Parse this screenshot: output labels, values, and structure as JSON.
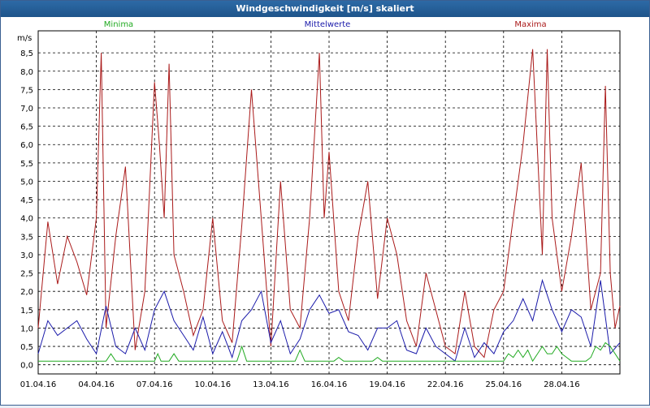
{
  "window": {
    "title": "Windgeschwindigkeit [m/s] skaliert"
  },
  "chart_data": {
    "type": "line",
    "title": "Windgeschwindigkeit [m/s] skaliert",
    "ylabel": "m/s",
    "ylim": [
      -0.25,
      9.1
    ],
    "xlim": [
      "2016-04-01",
      "2016-05-01"
    ],
    "grid": true,
    "y_ticks": [
      "0,0",
      "0,5",
      "1,0",
      "1,5",
      "2,0",
      "2,5",
      "3,0",
      "3,5",
      "4,0",
      "4,5",
      "5,0",
      "5,5",
      "6,0",
      "6,5",
      "7,0",
      "7,5",
      "8,0",
      "8,5"
    ],
    "y_tick_values": [
      0,
      0.5,
      1,
      1.5,
      2,
      2.5,
      3,
      3.5,
      4,
      4.5,
      5,
      5.5,
      6,
      6.5,
      7,
      7.5,
      8,
      8.5
    ],
    "x_ticks": [
      "01.04.16",
      "04.04.16",
      "07.04.16",
      "10.04.16",
      "13.04.16",
      "16.04.16",
      "19.04.16",
      "22.04.16",
      "25.04.16",
      "28.04.16"
    ],
    "x_tick_dates": [
      "2016-04-01",
      "2016-04-04",
      "2016-04-07",
      "2016-04-10",
      "2016-04-13",
      "2016-04-16",
      "2016-04-19",
      "2016-04-22",
      "2016-04-25",
      "2016-04-28"
    ],
    "legend": [
      "Minima",
      "Mittelwerte",
      "Maxima"
    ],
    "colors": {
      "minima": "#22aa22",
      "mittelwerte": "#1a1aaa",
      "maxima": "#aa1a1a"
    },
    "series": [
      {
        "name": "Maxima",
        "color": "#aa1a1a",
        "x": [
          "2016-04-01 00:00",
          "2016-04-01 12:00",
          "2016-04-02 00:00",
          "2016-04-02 12:00",
          "2016-04-03 00:00",
          "2016-04-03 12:00",
          "2016-04-04 00:00",
          "2016-04-04 06:00",
          "2016-04-04 12:00",
          "2016-04-05 00:00",
          "2016-04-05 12:00",
          "2016-04-06 00:00",
          "2016-04-06 12:00",
          "2016-04-07 00:00",
          "2016-04-07 06:00",
          "2016-04-07 12:00",
          "2016-04-07 18:00",
          "2016-04-08 00:00",
          "2016-04-08 12:00",
          "2016-04-09 00:00",
          "2016-04-09 12:00",
          "2016-04-10 00:00",
          "2016-04-10 12:00",
          "2016-04-11 00:00",
          "2016-04-11 12:00",
          "2016-04-12 00:00",
          "2016-04-12 12:00",
          "2016-04-13 00:00",
          "2016-04-13 12:00",
          "2016-04-14 00:00",
          "2016-04-14 12:00",
          "2016-04-15 00:00",
          "2016-04-15 12:00",
          "2016-04-15 18:00",
          "2016-04-16 00:00",
          "2016-04-16 12:00",
          "2016-04-17 00:00",
          "2016-04-17 12:00",
          "2016-04-18 00:00",
          "2016-04-18 12:00",
          "2016-04-19 00:00",
          "2016-04-19 12:00",
          "2016-04-20 00:00",
          "2016-04-20 12:00",
          "2016-04-21 00:00",
          "2016-04-21 12:00",
          "2016-04-22 00:00",
          "2016-04-22 12:00",
          "2016-04-23 00:00",
          "2016-04-23 12:00",
          "2016-04-24 00:00",
          "2016-04-24 12:00",
          "2016-04-25 00:00",
          "2016-04-25 12:00",
          "2016-04-26 00:00",
          "2016-04-26 12:00",
          "2016-04-27 00:00",
          "2016-04-27 06:00",
          "2016-04-27 12:00",
          "2016-04-28 00:00",
          "2016-04-28 12:00",
          "2016-04-29 00:00",
          "2016-04-29 12:00",
          "2016-04-30 00:00",
          "2016-04-30 06:00",
          "2016-04-30 12:00",
          "2016-04-30 18:00",
          "2016-05-01 00:00"
        ],
        "y": [
          1.0,
          3.9,
          2.2,
          3.5,
          2.8,
          1.9,
          4.0,
          8.5,
          1.0,
          3.5,
          5.4,
          0.4,
          2.0,
          7.7,
          6.0,
          4.0,
          8.2,
          3.0,
          2.0,
          0.8,
          1.5,
          4.0,
          1.2,
          0.6,
          3.8,
          7.5,
          4.0,
          0.5,
          5.0,
          1.5,
          1.0,
          4.0,
          8.5,
          4.0,
          5.8,
          2.0,
          1.2,
          3.5,
          5.0,
          1.8,
          4.0,
          3.0,
          1.2,
          0.5,
          2.5,
          1.5,
          0.5,
          0.3,
          2.0,
          0.5,
          0.2,
          1.5,
          2.0,
          4.0,
          6.0,
          8.6,
          3.0,
          8.6,
          4.0,
          2.0,
          3.5,
          5.5,
          1.5,
          2.5,
          7.6,
          2.5,
          1.0,
          1.6
        ]
      },
      {
        "name": "Mittelwerte",
        "color": "#1a1aaa",
        "x": [
          "2016-04-01 00:00",
          "2016-04-01 12:00",
          "2016-04-02 00:00",
          "2016-04-02 12:00",
          "2016-04-03 00:00",
          "2016-04-03 12:00",
          "2016-04-04 00:00",
          "2016-04-04 12:00",
          "2016-04-05 00:00",
          "2016-04-05 12:00",
          "2016-04-06 00:00",
          "2016-04-06 12:00",
          "2016-04-07 00:00",
          "2016-04-07 12:00",
          "2016-04-08 00:00",
          "2016-04-08 12:00",
          "2016-04-09 00:00",
          "2016-04-09 12:00",
          "2016-04-10 00:00",
          "2016-04-10 12:00",
          "2016-04-11 00:00",
          "2016-04-11 12:00",
          "2016-04-12 00:00",
          "2016-04-12 12:00",
          "2016-04-13 00:00",
          "2016-04-13 12:00",
          "2016-04-14 00:00",
          "2016-04-14 12:00",
          "2016-04-15 00:00",
          "2016-04-15 12:00",
          "2016-04-16 00:00",
          "2016-04-16 12:00",
          "2016-04-17 00:00",
          "2016-04-17 12:00",
          "2016-04-18 00:00",
          "2016-04-18 12:00",
          "2016-04-19 00:00",
          "2016-04-19 12:00",
          "2016-04-20 00:00",
          "2016-04-20 12:00",
          "2016-04-21 00:00",
          "2016-04-21 12:00",
          "2016-04-22 00:00",
          "2016-04-22 12:00",
          "2016-04-23 00:00",
          "2016-04-23 12:00",
          "2016-04-24 00:00",
          "2016-04-24 12:00",
          "2016-04-25 00:00",
          "2016-04-25 12:00",
          "2016-04-26 00:00",
          "2016-04-26 12:00",
          "2016-04-27 00:00",
          "2016-04-27 12:00",
          "2016-04-28 00:00",
          "2016-04-28 12:00",
          "2016-04-29 00:00",
          "2016-04-29 12:00",
          "2016-04-30 00:00",
          "2016-04-30 12:00",
          "2016-05-01 00:00"
        ],
        "y": [
          0.3,
          1.2,
          0.8,
          1.0,
          1.2,
          0.7,
          0.3,
          1.6,
          0.5,
          0.3,
          1.0,
          0.4,
          1.5,
          2.0,
          1.2,
          0.8,
          0.4,
          1.3,
          0.3,
          0.9,
          0.2,
          1.2,
          1.5,
          2.0,
          0.6,
          1.2,
          0.3,
          0.7,
          1.5,
          1.9,
          1.4,
          1.5,
          0.9,
          0.8,
          0.4,
          1.0,
          1.0,
          1.2,
          0.4,
          0.3,
          1.0,
          0.5,
          0.3,
          0.1,
          1.0,
          0.2,
          0.6,
          0.3,
          0.9,
          1.2,
          1.8,
          1.2,
          2.3,
          1.5,
          0.9,
          1.5,
          1.3,
          0.5,
          2.3,
          0.3,
          0.6
        ]
      },
      {
        "name": "Minima",
        "color": "#22aa22",
        "x": [
          "2016-04-01 00:00",
          "2016-04-04 12:00",
          "2016-04-04 18:00",
          "2016-04-05 00:00",
          "2016-04-07 00:00",
          "2016-04-07 04:00",
          "2016-04-07 08:00",
          "2016-04-07 18:00",
          "2016-04-08 00:00",
          "2016-04-08 06:00",
          "2016-04-11 06:00",
          "2016-04-11 12:00",
          "2016-04-11 18:00",
          "2016-04-12 06:00",
          "2016-04-12 14:00",
          "2016-04-12 22:00",
          "2016-04-14 06:00",
          "2016-04-14 12:00",
          "2016-04-14 18:00",
          "2016-04-15 06:00",
          "2016-04-15 12:00",
          "2016-04-15 18:00",
          "2016-04-16 06:00",
          "2016-04-16 12:00",
          "2016-04-16 18:00",
          "2016-04-18 06:00",
          "2016-04-18 12:00",
          "2016-04-18 18:00",
          "2016-04-25 00:00",
          "2016-04-25 06:00",
          "2016-04-25 12:00",
          "2016-04-25 18:00",
          "2016-04-26 00:00",
          "2016-04-26 06:00",
          "2016-04-26 12:00",
          "2016-04-26 18:00",
          "2016-04-27 00:00",
          "2016-04-27 06:00",
          "2016-04-27 12:00",
          "2016-04-27 18:00",
          "2016-04-28 00:00",
          "2016-04-28 06:00",
          "2016-04-28 12:00",
          "2016-04-28 18:00",
          "2016-04-29 00:00",
          "2016-04-29 06:00",
          "2016-04-29 12:00",
          "2016-04-29 18:00",
          "2016-04-30 00:00",
          "2016-04-30 06:00",
          "2016-04-30 12:00",
          "2016-05-01 00:00"
        ],
        "y": [
          0.1,
          0.1,
          0.3,
          0.1,
          0.1,
          0.3,
          0.1,
          0.1,
          0.3,
          0.1,
          0.1,
          0.5,
          0.1,
          0.1,
          0.1,
          0.1,
          0.1,
          0.4,
          0.1,
          0.1,
          0.1,
          0.1,
          0.1,
          0.2,
          0.1,
          0.1,
          0.2,
          0.1,
          0.1,
          0.3,
          0.2,
          0.4,
          0.2,
          0.4,
          0.1,
          0.3,
          0.5,
          0.3,
          0.3,
          0.5,
          0.3,
          0.2,
          0.1,
          0.1,
          0.1,
          0.1,
          0.2,
          0.5,
          0.4,
          0.6,
          0.5,
          0.1
        ]
      }
    ]
  }
}
